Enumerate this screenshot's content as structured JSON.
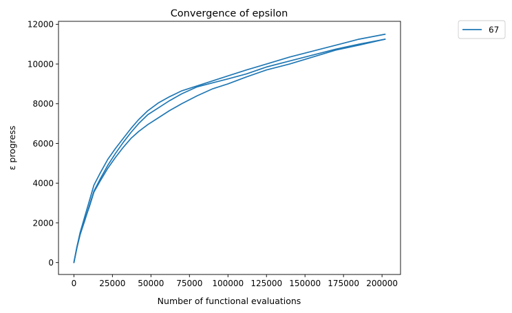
{
  "chart_data": {
    "type": "line",
    "title": "Convergence of epsilon",
    "xlabel": "Number of functional evaluations",
    "ylabel": "ε progress",
    "xlim": [
      -10000,
      212000
    ],
    "ylim": [
      -600,
      12150
    ],
    "xticks": [
      0,
      25000,
      50000,
      75000,
      100000,
      125000,
      150000,
      175000,
      200000
    ],
    "yticks": [
      0,
      2000,
      4000,
      6000,
      8000,
      10000,
      12000
    ],
    "grid": false,
    "legend": {
      "placement": "outside-top-right",
      "entries": [
        "67"
      ]
    },
    "series_color": "#1f77b4",
    "series": [
      {
        "name": "67",
        "x": [
          0,
          2000,
          4000,
          7000,
          10000,
          13000,
          17000,
          22000,
          27000,
          32000,
          37000,
          42000,
          48000,
          55000,
          62000,
          70000,
          80000,
          90000,
          100000,
          112000,
          125000,
          140000,
          155000,
          170000,
          185000,
          202000
        ],
        "y": [
          0,
          800,
          1500,
          2300,
          3100,
          3900,
          4500,
          5200,
          5750,
          6250,
          6750,
          7200,
          7650,
          8050,
          8350,
          8650,
          8900,
          9150,
          9400,
          9700,
          10000,
          10350,
          10650,
          10950,
          11250,
          11500
        ]
      },
      {
        "x": [
          0,
          2000,
          4000,
          7000,
          10000,
          13000,
          17000,
          22000,
          27000,
          32000,
          37000,
          42000,
          48000,
          55000,
          62000,
          70000,
          80000,
          90000,
          100000,
          112000,
          125000,
          140000,
          155000,
          170000,
          185000,
          202000
        ],
        "y": [
          0,
          750,
          1400,
          2100,
          2850,
          3600,
          4200,
          4900,
          5500,
          6050,
          6550,
          7000,
          7450,
          7800,
          8150,
          8500,
          8850,
          9050,
          9250,
          9500,
          9850,
          10150,
          10450,
          10750,
          11000,
          11250
        ]
      },
      {
        "x": [
          0,
          2000,
          4000,
          7000,
          10000,
          13000,
          17000,
          22000,
          27000,
          32000,
          37000,
          42000,
          48000,
          55000,
          62000,
          70000,
          80000,
          90000,
          100000,
          112000,
          125000,
          140000,
          155000,
          170000,
          185000,
          202000
        ],
        "y": [
          0,
          800,
          1400,
          2150,
          2800,
          3550,
          4100,
          4750,
          5300,
          5800,
          6250,
          6600,
          6950,
          7300,
          7650,
          8000,
          8400,
          8750,
          9000,
          9350,
          9700,
          10000,
          10350,
          10700,
          10950,
          11250
        ]
      }
    ]
  }
}
